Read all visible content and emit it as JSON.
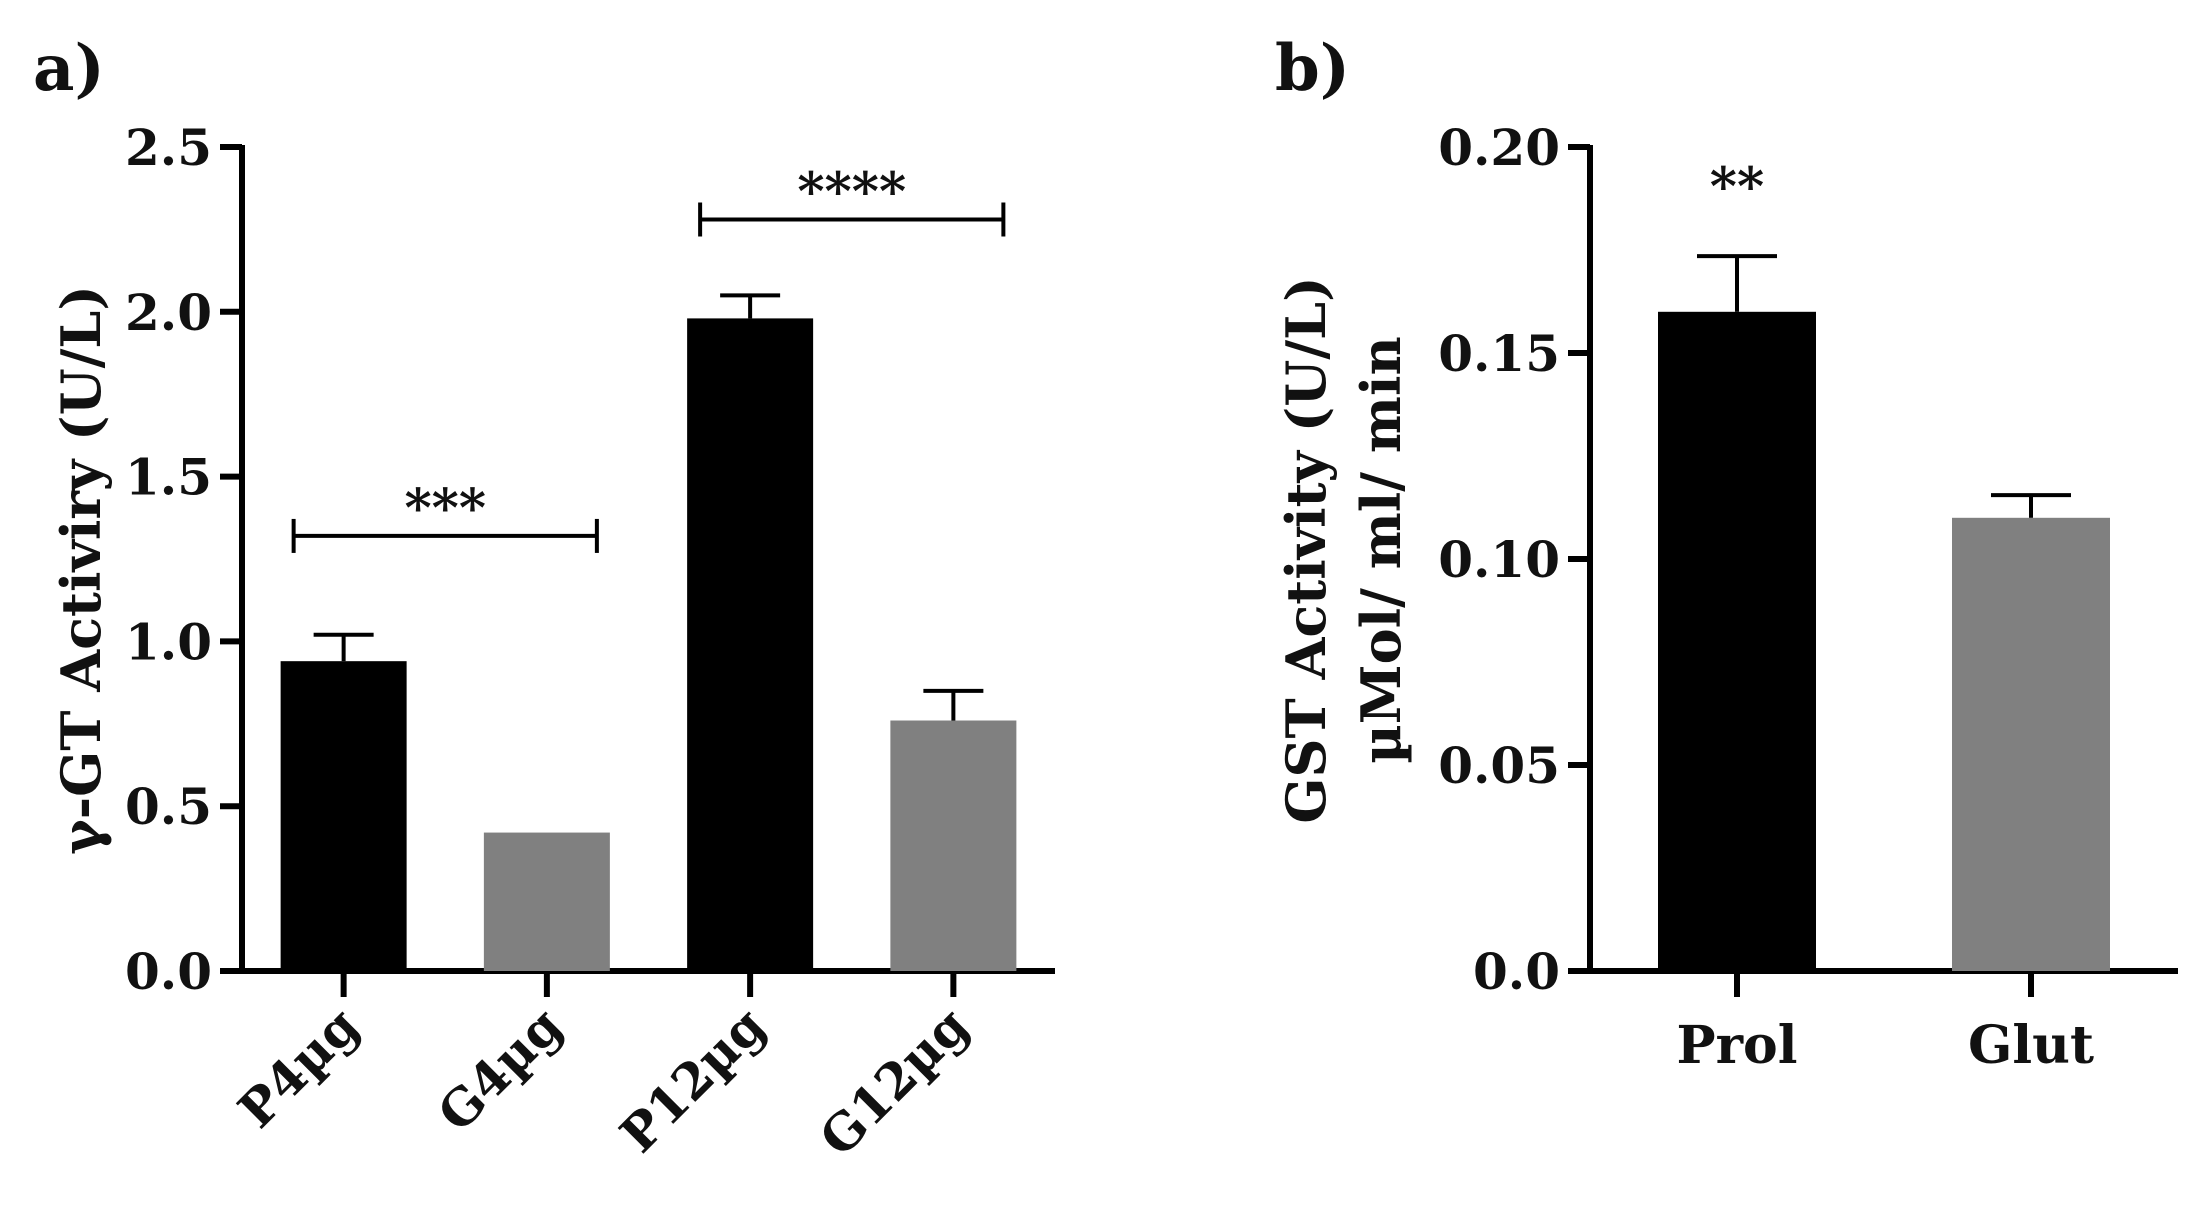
{
  "chart_data": [
    {
      "panel_label": "a)",
      "type": "bar",
      "title": "",
      "categories": [
        "P4µg",
        "G4µg",
        "P12µg",
        "G12µg"
      ],
      "values": [
        0.94,
        0.42,
        1.98,
        0.76
      ],
      "errors": [
        0.08,
        0,
        0.07,
        0.09
      ],
      "bar_colors": [
        "#000000",
        "#808080",
        "#000000",
        "#808080"
      ],
      "xlabel": "",
      "ylabel": "γ-GT Activiry (U/L)",
      "ylim": [
        0,
        2.5
      ],
      "yticks": [
        "0.0",
        "0.5",
        "1.0",
        "1.5",
        "2.0",
        "2.5"
      ],
      "tick_rotation": "diagonal",
      "significance": [
        {
          "from": 0,
          "to": 1,
          "level": 1.32,
          "label": "***"
        },
        {
          "from": 2,
          "to": 3,
          "level": 2.28,
          "label": "****"
        }
      ]
    },
    {
      "panel_label": "b)",
      "type": "bar",
      "title": "",
      "categories": [
        "Prol",
        "Glut"
      ],
      "values": [
        0.16,
        0.11
      ],
      "errors": [
        0.0135,
        0.0055
      ],
      "bar_colors": [
        "#000000",
        "#808080"
      ],
      "xlabel": "",
      "ylabel": "GST Activity (U/L)",
      "ylabel2": "µMol/ ml/ min",
      "ylim": [
        0,
        0.2
      ],
      "yticks": [
        "0.0",
        "0.05",
        "0.10",
        "0.15",
        "0.20"
      ],
      "tick_rotation": "none",
      "significance": [
        {
          "over": 0,
          "level": 0.188,
          "label": "**"
        }
      ]
    }
  ]
}
